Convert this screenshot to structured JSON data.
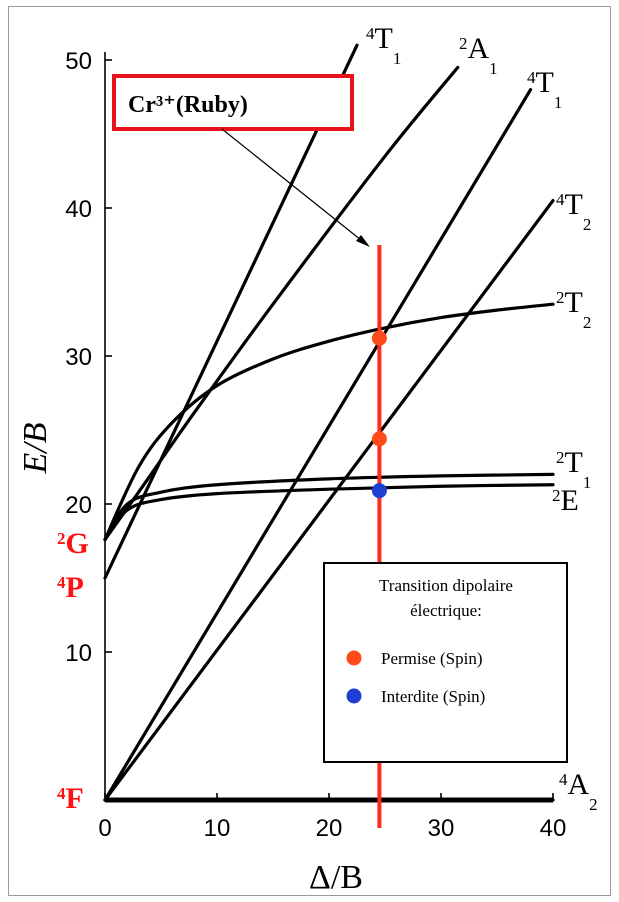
{
  "chart_data": {
    "type": "line",
    "title": "",
    "xlabel": "Δ/B",
    "ylabel": "E/B",
    "xlim": [
      0,
      40
    ],
    "ylim": [
      0,
      50
    ],
    "xticks": [
      "0",
      "10",
      "20",
      "30",
      "40"
    ],
    "yticks": [
      "10",
      "20",
      "30",
      "40",
      "50"
    ],
    "grid": false,
    "series": [
      {
        "term": {
          "sup": "4",
          "base": "A",
          "sub": "2"
        },
        "x": [
          0,
          40
        ],
        "y": [
          0,
          0
        ]
      },
      {
        "term": {
          "sup": "2",
          "base": "E",
          "sub": ""
        },
        "x": [
          0,
          2,
          5,
          10,
          20,
          30,
          40
        ],
        "y": [
          17.6,
          19.6,
          20.3,
          20.7,
          21.0,
          21.2,
          21.3
        ]
      },
      {
        "term": {
          "sup": "2",
          "base": "T",
          "sub": "1"
        },
        "x": [
          0,
          2,
          5,
          10,
          20,
          30,
          40
        ],
        "y": [
          17.6,
          20.0,
          20.8,
          21.3,
          21.7,
          21.9,
          22.0
        ]
      },
      {
        "term": {
          "sup": "2",
          "base": "T",
          "sub": "2"
        },
        "x": [
          0,
          3,
          6,
          10,
          15,
          20,
          25,
          30,
          35,
          40
        ],
        "y": [
          17.6,
          22.5,
          25.5,
          28.0,
          29.8,
          31.0,
          31.9,
          32.6,
          33.1,
          33.5
        ]
      },
      {
        "term": {
          "sup": "4",
          "base": "T",
          "sub": "2"
        },
        "x": [
          0,
          40
        ],
        "y": [
          0,
          40.5
        ]
      },
      {
        "term": {
          "sup": "4",
          "base": "T",
          "sub": "1"
        },
        "x": [
          0,
          38
        ],
        "y": [
          0,
          48
        ]
      },
      {
        "term": {
          "sup": "2",
          "base": "A",
          "sub": "1"
        },
        "x": [
          0,
          3,
          8,
          15,
          25,
          31.5
        ],
        "y": [
          17.6,
          20.8,
          26.2,
          33.5,
          43.5,
          49.5
        ]
      },
      {
        "term": {
          "sup": "4",
          "base": "T",
          "sub": "1"
        },
        "x": [
          0,
          22.5
        ],
        "y": [
          15.0,
          51.0
        ]
      }
    ],
    "free_ion_terms": [
      {
        "sup": "2",
        "base": "G",
        "y": 17.6
      },
      {
        "sup": "4",
        "base": "P",
        "y": 15.0
      },
      {
        "sup": "4",
        "base": "F",
        "y": 0
      }
    ],
    "marker_line": {
      "x": 24.5,
      "y_top": 37.5,
      "color": "#ff2a1a"
    },
    "points": [
      {
        "x": 24.5,
        "y": 31.2,
        "kind": "allowed"
      },
      {
        "x": 24.5,
        "y": 24.4,
        "kind": "allowed"
      },
      {
        "x": 24.5,
        "y": 20.9,
        "kind": "forbidden"
      }
    ],
    "callout": {
      "text": "Cr³⁺(Ruby)",
      "border_color": "#e8121c"
    },
    "legend": {
      "title_line1": "Transition dipolaire",
      "title_line2": "électrique:",
      "placement": "bottom-right",
      "items": [
        {
          "label": "Permise (Spin)",
          "color": "#ff4a1a"
        },
        {
          "label": "Interdite (Spin)",
          "color": "#1e3fd4"
        }
      ]
    },
    "colors": {
      "curves": "#000000",
      "free_terms": "#ff1111"
    }
  }
}
